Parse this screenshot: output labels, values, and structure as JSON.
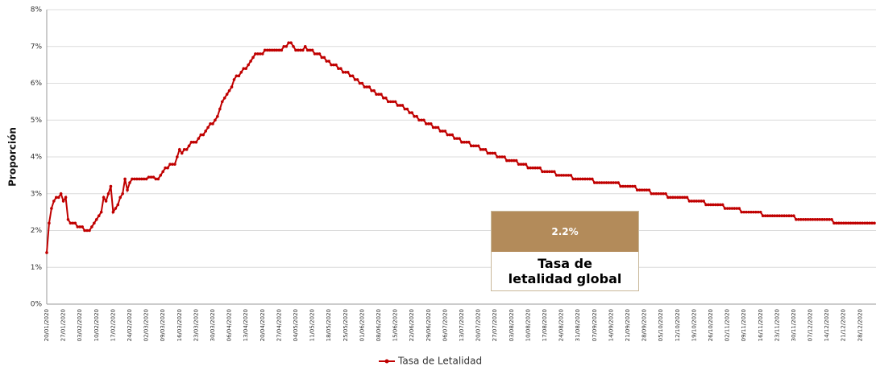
{
  "chart_data": {
    "type": "line",
    "y_label": "Proporción",
    "categories": [
      "20/01/2020",
      null,
      null,
      null,
      null,
      null,
      null,
      "27/01/2020",
      null,
      null,
      null,
      null,
      null,
      null,
      "03/02/2020",
      null,
      null,
      null,
      null,
      null,
      null,
      "10/02/2020",
      null,
      null,
      null,
      null,
      null,
      null,
      "17/02/2020",
      null,
      null,
      null,
      null,
      null,
      null,
      "24/02/2020",
      null,
      null,
      null,
      null,
      null,
      null,
      "02/03/2020",
      null,
      null,
      null,
      null,
      null,
      null,
      "09/03/2020",
      null,
      null,
      null,
      null,
      null,
      null,
      "16/03/2020",
      null,
      null,
      null,
      null,
      null,
      null,
      "23/03/2020",
      null,
      null,
      null,
      null,
      null,
      null,
      "30/03/2020",
      null,
      null,
      null,
      null,
      null,
      null,
      "06/04/2020",
      null,
      null,
      null,
      null,
      null,
      null,
      "13/04/2020",
      null,
      null,
      null,
      null,
      null,
      null,
      "20/04/2020",
      null,
      null,
      null,
      null,
      null,
      null,
      "27/04/2020",
      null,
      null,
      null,
      null,
      null,
      null,
      "04/05/2020",
      null,
      null,
      null,
      null,
      null,
      null,
      "11/05/2020",
      null,
      null,
      null,
      null,
      null,
      null,
      "18/05/2020",
      null,
      null,
      null,
      null,
      null,
      null,
      "25/05/2020",
      null,
      null,
      null,
      null,
      null,
      null,
      "01/06/2020",
      null,
      null,
      null,
      null,
      null,
      null,
      "08/06/2020",
      null,
      null,
      null,
      null,
      null,
      null,
      "15/06/2020",
      null,
      null,
      null,
      null,
      null,
      null,
      "22/06/2020",
      null,
      null,
      null,
      null,
      null,
      null,
      "29/06/2020",
      null,
      null,
      null,
      null,
      null,
      null,
      "06/07/2020",
      null,
      null,
      null,
      null,
      null,
      null,
      "13/07/2020",
      null,
      null,
      null,
      null,
      null,
      null,
      "20/07/2020",
      null,
      null,
      null,
      null,
      null,
      null,
      "27/07/2020",
      null,
      null,
      null,
      null,
      null,
      null,
      "03/08/2020",
      null,
      null,
      null,
      null,
      null,
      null,
      "10/08/2020",
      null,
      null,
      null,
      null,
      null,
      null,
      "17/08/2020",
      null,
      null,
      null,
      null,
      null,
      null,
      "24/08/2020",
      null,
      null,
      null,
      null,
      null,
      null,
      "31/08/2020",
      null,
      null,
      null,
      null,
      null,
      null,
      "07/09/2020",
      null,
      null,
      null,
      null,
      null,
      null,
      "14/09/2020",
      null,
      null,
      null,
      null,
      null,
      null,
      "21/09/2020",
      null,
      null,
      null,
      null,
      null,
      null,
      "28/09/2020",
      null,
      null,
      null,
      null,
      null,
      null,
      "05/10/2020",
      null,
      null,
      null,
      null,
      null,
      null,
      "12/10/2020",
      null,
      null,
      null,
      null,
      null,
      null,
      "19/10/2020",
      null,
      null,
      null,
      null,
      null,
      null,
      "26/10/2020",
      null,
      null,
      null,
      null,
      null,
      null,
      "02/11/2020",
      null,
      null,
      null,
      null,
      null,
      null,
      "09/11/2020",
      null,
      null,
      null,
      null,
      null,
      null,
      "16/11/2020",
      null,
      null,
      null,
      null,
      null,
      null,
      "23/11/2020",
      null,
      null,
      null,
      null,
      null,
      null,
      "30/11/2020",
      null,
      null,
      null,
      null,
      null,
      null,
      "07/12/2020",
      null,
      null,
      null,
      null,
      null,
      null,
      "14/12/2020",
      null,
      null,
      null,
      null,
      null,
      null,
      "21/12/2020",
      null,
      null,
      null,
      null,
      null,
      null,
      "28/12/2020",
      null,
      null,
      null,
      null,
      null,
      null
    ],
    "series": [
      {
        "name": "Tasa de Letalidad",
        "color": "#c00000",
        "values": [
          1.4,
          2.2,
          2.6,
          2.8,
          2.9,
          2.9,
          3.0,
          2.8,
          2.9,
          2.3,
          2.2,
          2.2,
          2.2,
          2.1,
          2.1,
          2.1,
          2.0,
          2.0,
          2.0,
          2.1,
          2.2,
          2.3,
          2.4,
          2.5,
          2.9,
          2.8,
          3.0,
          3.2,
          2.5,
          2.6,
          2.7,
          2.9,
          3.0,
          3.4,
          3.1,
          3.3,
          3.4,
          3.4,
          3.4,
          3.4,
          3.4,
          3.4,
          3.4,
          3.45,
          3.45,
          3.45,
          3.4,
          3.4,
          3.5,
          3.6,
          3.7,
          3.7,
          3.8,
          3.8,
          3.8,
          4.0,
          4.2,
          4.1,
          4.2,
          4.2,
          4.3,
          4.4,
          4.4,
          4.4,
          4.5,
          4.6,
          4.6,
          4.7,
          4.8,
          4.9,
          4.9,
          5.0,
          5.1,
          5.3,
          5.5,
          5.6,
          5.7,
          5.8,
          5.9,
          6.1,
          6.2,
          6.2,
          6.3,
          6.4,
          6.4,
          6.5,
          6.6,
          6.7,
          6.8,
          6.8,
          6.8,
          6.8,
          6.9,
          6.9,
          6.9,
          6.9,
          6.9,
          6.9,
          6.9,
          6.9,
          7.0,
          7.0,
          7.1,
          7.1,
          7.0,
          6.9,
          6.9,
          6.9,
          6.9,
          7.0,
          6.9,
          6.9,
          6.9,
          6.8,
          6.8,
          6.8,
          6.7,
          6.7,
          6.6,
          6.6,
          6.5,
          6.5,
          6.5,
          6.4,
          6.4,
          6.3,
          6.3,
          6.3,
          6.2,
          6.2,
          6.1,
          6.1,
          6.0,
          6.0,
          5.9,
          5.9,
          5.9,
          5.8,
          5.8,
          5.7,
          5.7,
          5.7,
          5.6,
          5.6,
          5.5,
          5.5,
          5.5,
          5.5,
          5.4,
          5.4,
          5.4,
          5.3,
          5.3,
          5.2,
          5.2,
          5.1,
          5.1,
          5.0,
          5.0,
          5.0,
          4.9,
          4.9,
          4.9,
          4.8,
          4.8,
          4.8,
          4.7,
          4.7,
          4.7,
          4.6,
          4.6,
          4.6,
          4.5,
          4.5,
          4.5,
          4.4,
          4.4,
          4.4,
          4.4,
          4.3,
          4.3,
          4.3,
          4.3,
          4.2,
          4.2,
          4.2,
          4.1,
          4.1,
          4.1,
          4.1,
          4.0,
          4.0,
          4.0,
          4.0,
          3.9,
          3.9,
          3.9,
          3.9,
          3.9,
          3.8,
          3.8,
          3.8,
          3.8,
          3.7,
          3.7,
          3.7,
          3.7,
          3.7,
          3.7,
          3.6,
          3.6,
          3.6,
          3.6,
          3.6,
          3.6,
          3.5,
          3.5,
          3.5,
          3.5,
          3.5,
          3.5,
          3.5,
          3.4,
          3.4,
          3.4,
          3.4,
          3.4,
          3.4,
          3.4,
          3.4,
          3.4,
          3.3,
          3.3,
          3.3,
          3.3,
          3.3,
          3.3,
          3.3,
          3.3,
          3.3,
          3.3,
          3.3,
          3.2,
          3.2,
          3.2,
          3.2,
          3.2,
          3.2,
          3.2,
          3.1,
          3.1,
          3.1,
          3.1,
          3.1,
          3.1,
          3.0,
          3.0,
          3.0,
          3.0,
          3.0,
          3.0,
          3.0,
          2.9,
          2.9,
          2.9,
          2.9,
          2.9,
          2.9,
          2.9,
          2.9,
          2.9,
          2.8,
          2.8,
          2.8,
          2.8,
          2.8,
          2.8,
          2.8,
          2.7,
          2.7,
          2.7,
          2.7,
          2.7,
          2.7,
          2.7,
          2.7,
          2.6,
          2.6,
          2.6,
          2.6,
          2.6,
          2.6,
          2.6,
          2.5,
          2.5,
          2.5,
          2.5,
          2.5,
          2.5,
          2.5,
          2.5,
          2.5,
          2.4,
          2.4,
          2.4,
          2.4,
          2.4,
          2.4,
          2.4,
          2.4,
          2.4,
          2.4,
          2.4,
          2.4,
          2.4,
          2.4,
          2.3,
          2.3,
          2.3,
          2.3,
          2.3,
          2.3,
          2.3,
          2.3,
          2.3,
          2.3,
          2.3,
          2.3,
          2.3,
          2.3,
          2.3,
          2.3,
          2.2,
          2.2,
          2.2,
          2.2,
          2.2,
          2.2,
          2.2,
          2.2,
          2.2,
          2.2,
          2.2,
          2.2,
          2.2,
          2.2,
          2.2,
          2.2,
          2.2,
          2.2
        ]
      }
    ],
    "ylim": [
      0,
      8
    ],
    "yticks": [
      {
        "value": 0,
        "label": "0%"
      },
      {
        "value": 1,
        "label": "1%"
      },
      {
        "value": 2,
        "label": "2%"
      },
      {
        "value": 3,
        "label": "3%"
      },
      {
        "value": 4,
        "label": "4%"
      },
      {
        "value": 5,
        "label": "5%"
      },
      {
        "value": 6,
        "label": "6%"
      },
      {
        "value": 7,
        "label": "7%"
      },
      {
        "value": 8,
        "label": "8%"
      }
    ],
    "grid": true,
    "legend": "bottom",
    "annotation": {
      "value": 2.2,
      "value_label": "2.2%",
      "text": "Tasa de letalidad global",
      "color": "#b38b5a"
    }
  }
}
